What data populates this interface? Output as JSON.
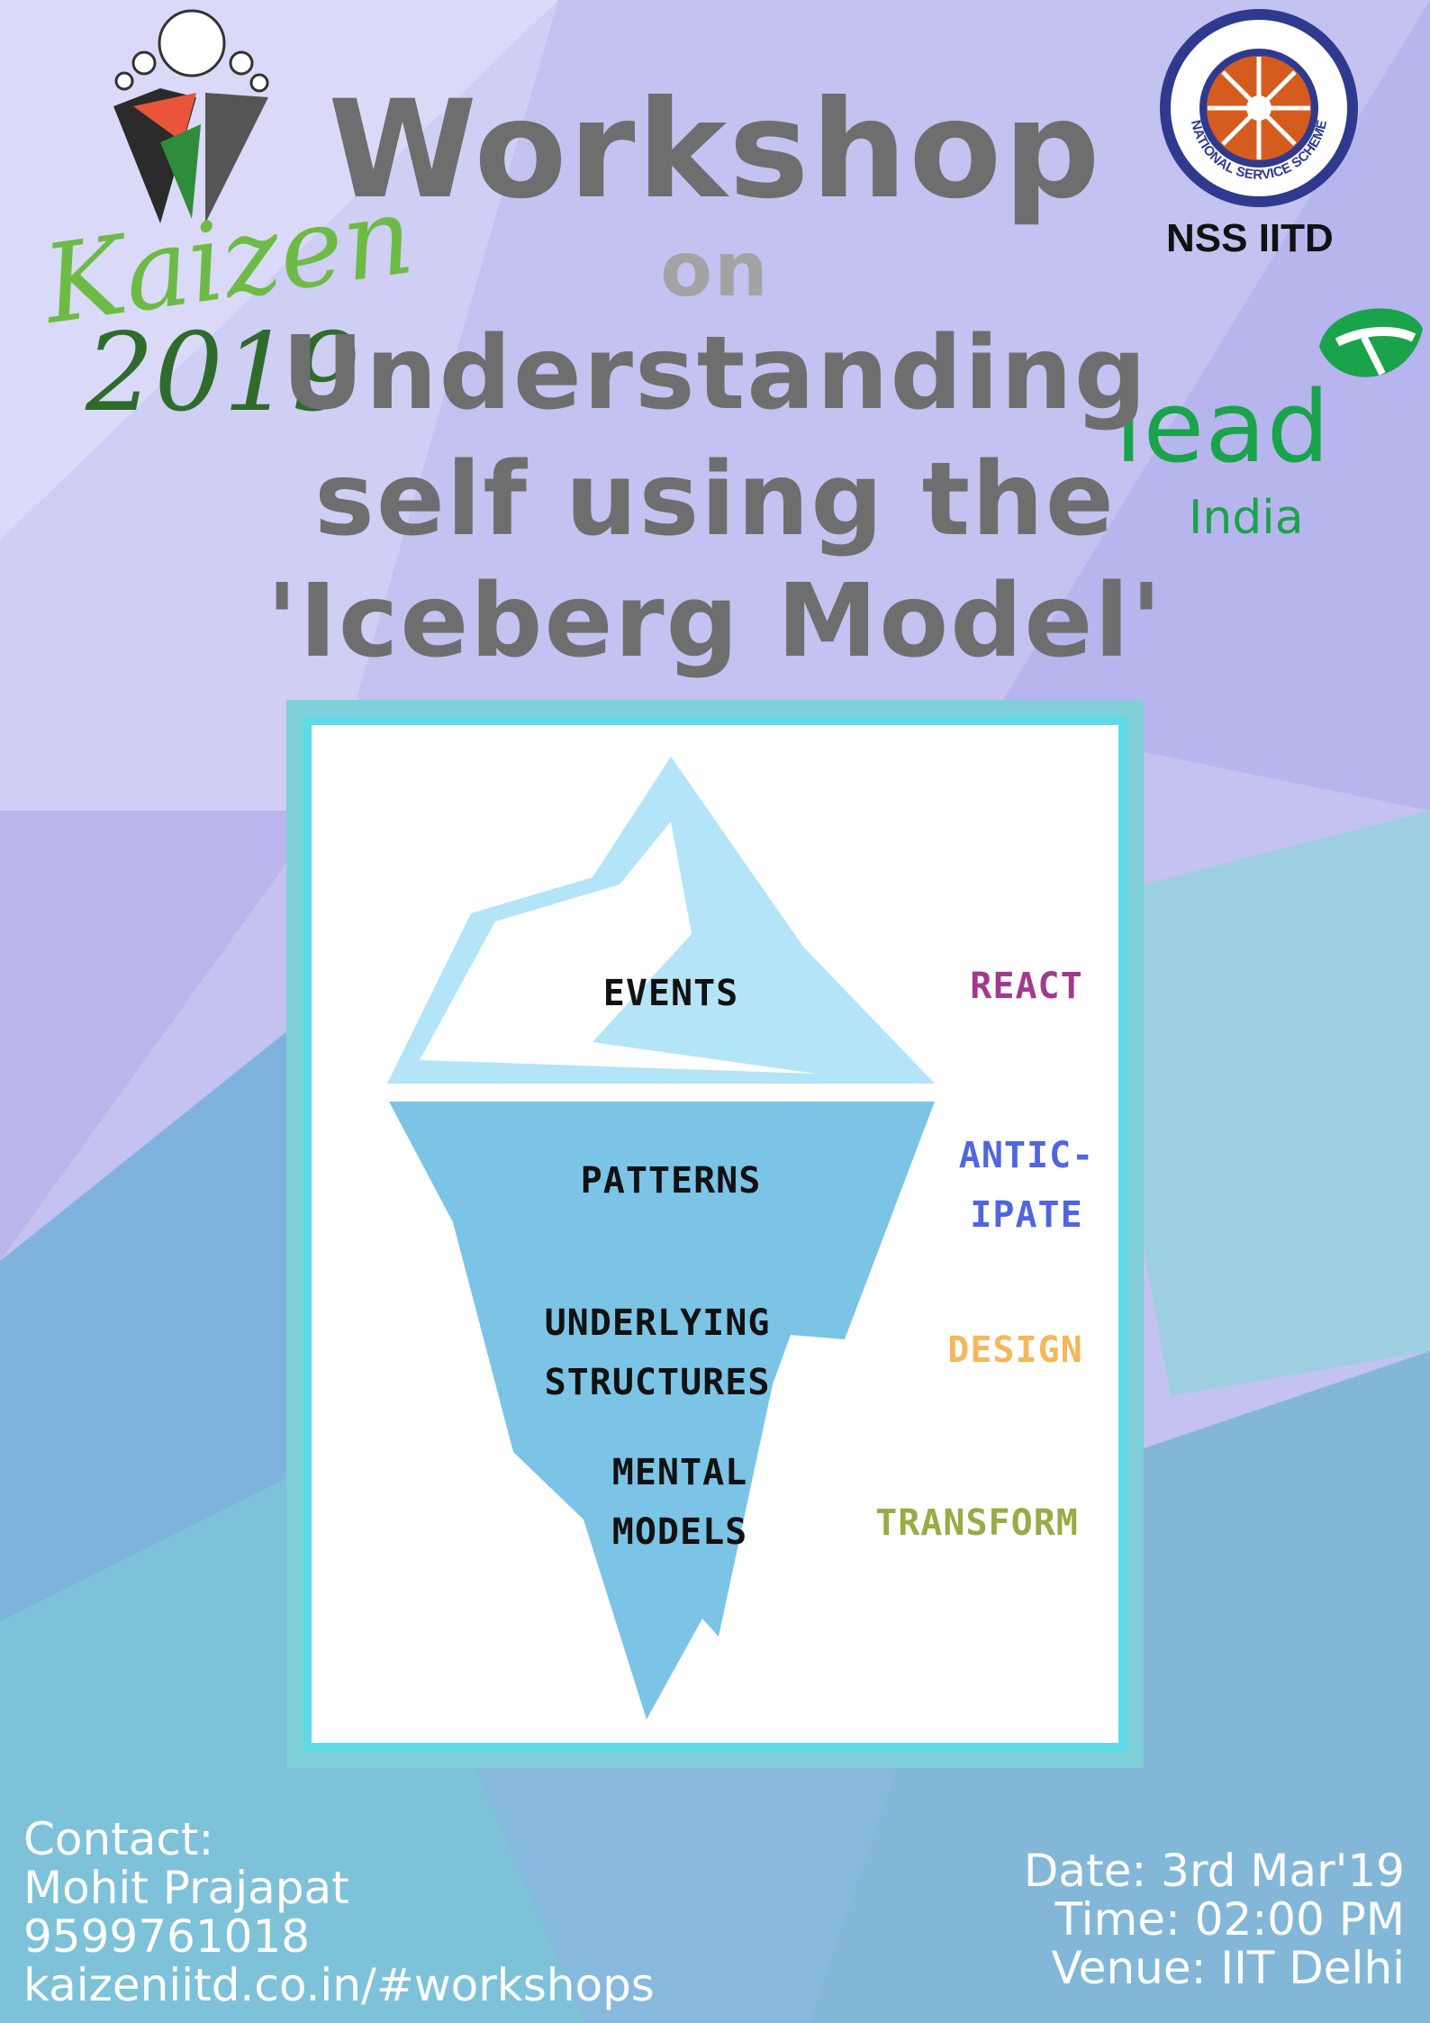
{
  "header": {
    "title_line_1": "Workshop",
    "title_line_2": "on",
    "title_line_3": "Understanding",
    "title_line_4": "self using the",
    "title_line_5": "'Iceberg Model'"
  },
  "logos": {
    "kaizen_word": "Kaizen",
    "kaizen_year": "2019",
    "nss_seal_text": "NATIONAL SERVICE SCHEME",
    "nss_label": "NSS IITD",
    "lead_word": "lead",
    "lead_sub": "India"
  },
  "iceberg": {
    "levels": [
      {
        "label_lines": [
          "EVENTS"
        ],
        "action_lines": [
          "REACT"
        ],
        "action_color": "#a3398f"
      },
      {
        "label_lines": [
          "PATTERNS"
        ],
        "action_lines": [
          "ANTIC-",
          "IPATE"
        ],
        "action_color": "#4f66e0"
      },
      {
        "label_lines": [
          "UNDERLYING",
          "STRUCTURES"
        ],
        "action_lines": [
          "DESIGN"
        ],
        "action_color": "#f5b75a"
      },
      {
        "label_lines": [
          "MENTAL",
          "MODELS"
        ],
        "action_lines": [
          "TRANSFORM"
        ],
        "action_color": "#99ab45"
      }
    ]
  },
  "contact": {
    "heading": "Contact:",
    "name": "Mohit Prajapat",
    "phone": "9599761018",
    "website": "kaizeniitd.co.in/#workshops"
  },
  "event": {
    "date": "Date: 3rd Mar'19",
    "time": "Time: 02:00 PM",
    "venue": "Venue: IIT Delhi"
  },
  "colors": {
    "title": "#6e6e6e",
    "frame": "#7fd0d8",
    "ice_top": "#b3e4f7",
    "ice_bottom": "#7bc4e6"
  }
}
